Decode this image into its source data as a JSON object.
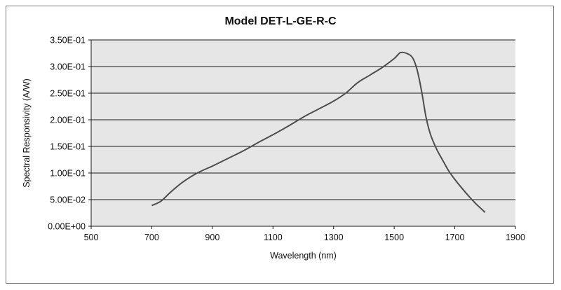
{
  "chart_data": {
    "type": "line",
    "title": "Model DET-L-GE-R-C",
    "xlabel": "Wavelength  (nm)",
    "ylabel": "Spectral Responsivity  (A/W)",
    "xlim": [
      500,
      1900
    ],
    "ylim": [
      0,
      0.35
    ],
    "x_ticks": [
      500,
      700,
      900,
      1100,
      1300,
      1500,
      1700,
      1900
    ],
    "x_tick_labels": [
      "500",
      "700",
      "900",
      "1100",
      "1300",
      "1500",
      "1700",
      "1900"
    ],
    "y_ticks": [
      0,
      0.05,
      0.1,
      0.15,
      0.2,
      0.25,
      0.3,
      0.35
    ],
    "y_tick_labels": [
      "0.00E+00",
      "5.00E-02",
      "1.00E-01",
      "1.50E-01",
      "2.00E-01",
      "2.50E-01",
      "3.00E-01",
      "3.50E-01"
    ],
    "grid": "horizontal",
    "plot_background": "#e6e6e6",
    "line_color": "#4d4d4d",
    "series": [
      {
        "name": "DET-L-GE-R-C",
        "x": [
          700,
          730,
          760,
          800,
          850,
          900,
          950,
          1000,
          1050,
          1100,
          1150,
          1200,
          1250,
          1300,
          1340,
          1380,
          1420,
          1460,
          1500,
          1520,
          1540,
          1560,
          1575,
          1590,
          1605,
          1620,
          1640,
          1660,
          1680,
          1700,
          1720,
          1750,
          1770,
          1800
        ],
        "values": [
          0.039,
          0.047,
          0.063,
          0.082,
          0.1,
          0.113,
          0.127,
          0.141,
          0.157,
          0.172,
          0.188,
          0.205,
          0.22,
          0.235,
          0.25,
          0.27,
          0.284,
          0.298,
          0.315,
          0.326,
          0.325,
          0.317,
          0.295,
          0.255,
          0.205,
          0.172,
          0.145,
          0.124,
          0.104,
          0.088,
          0.074,
          0.054,
          0.042,
          0.026
        ]
      }
    ]
  }
}
